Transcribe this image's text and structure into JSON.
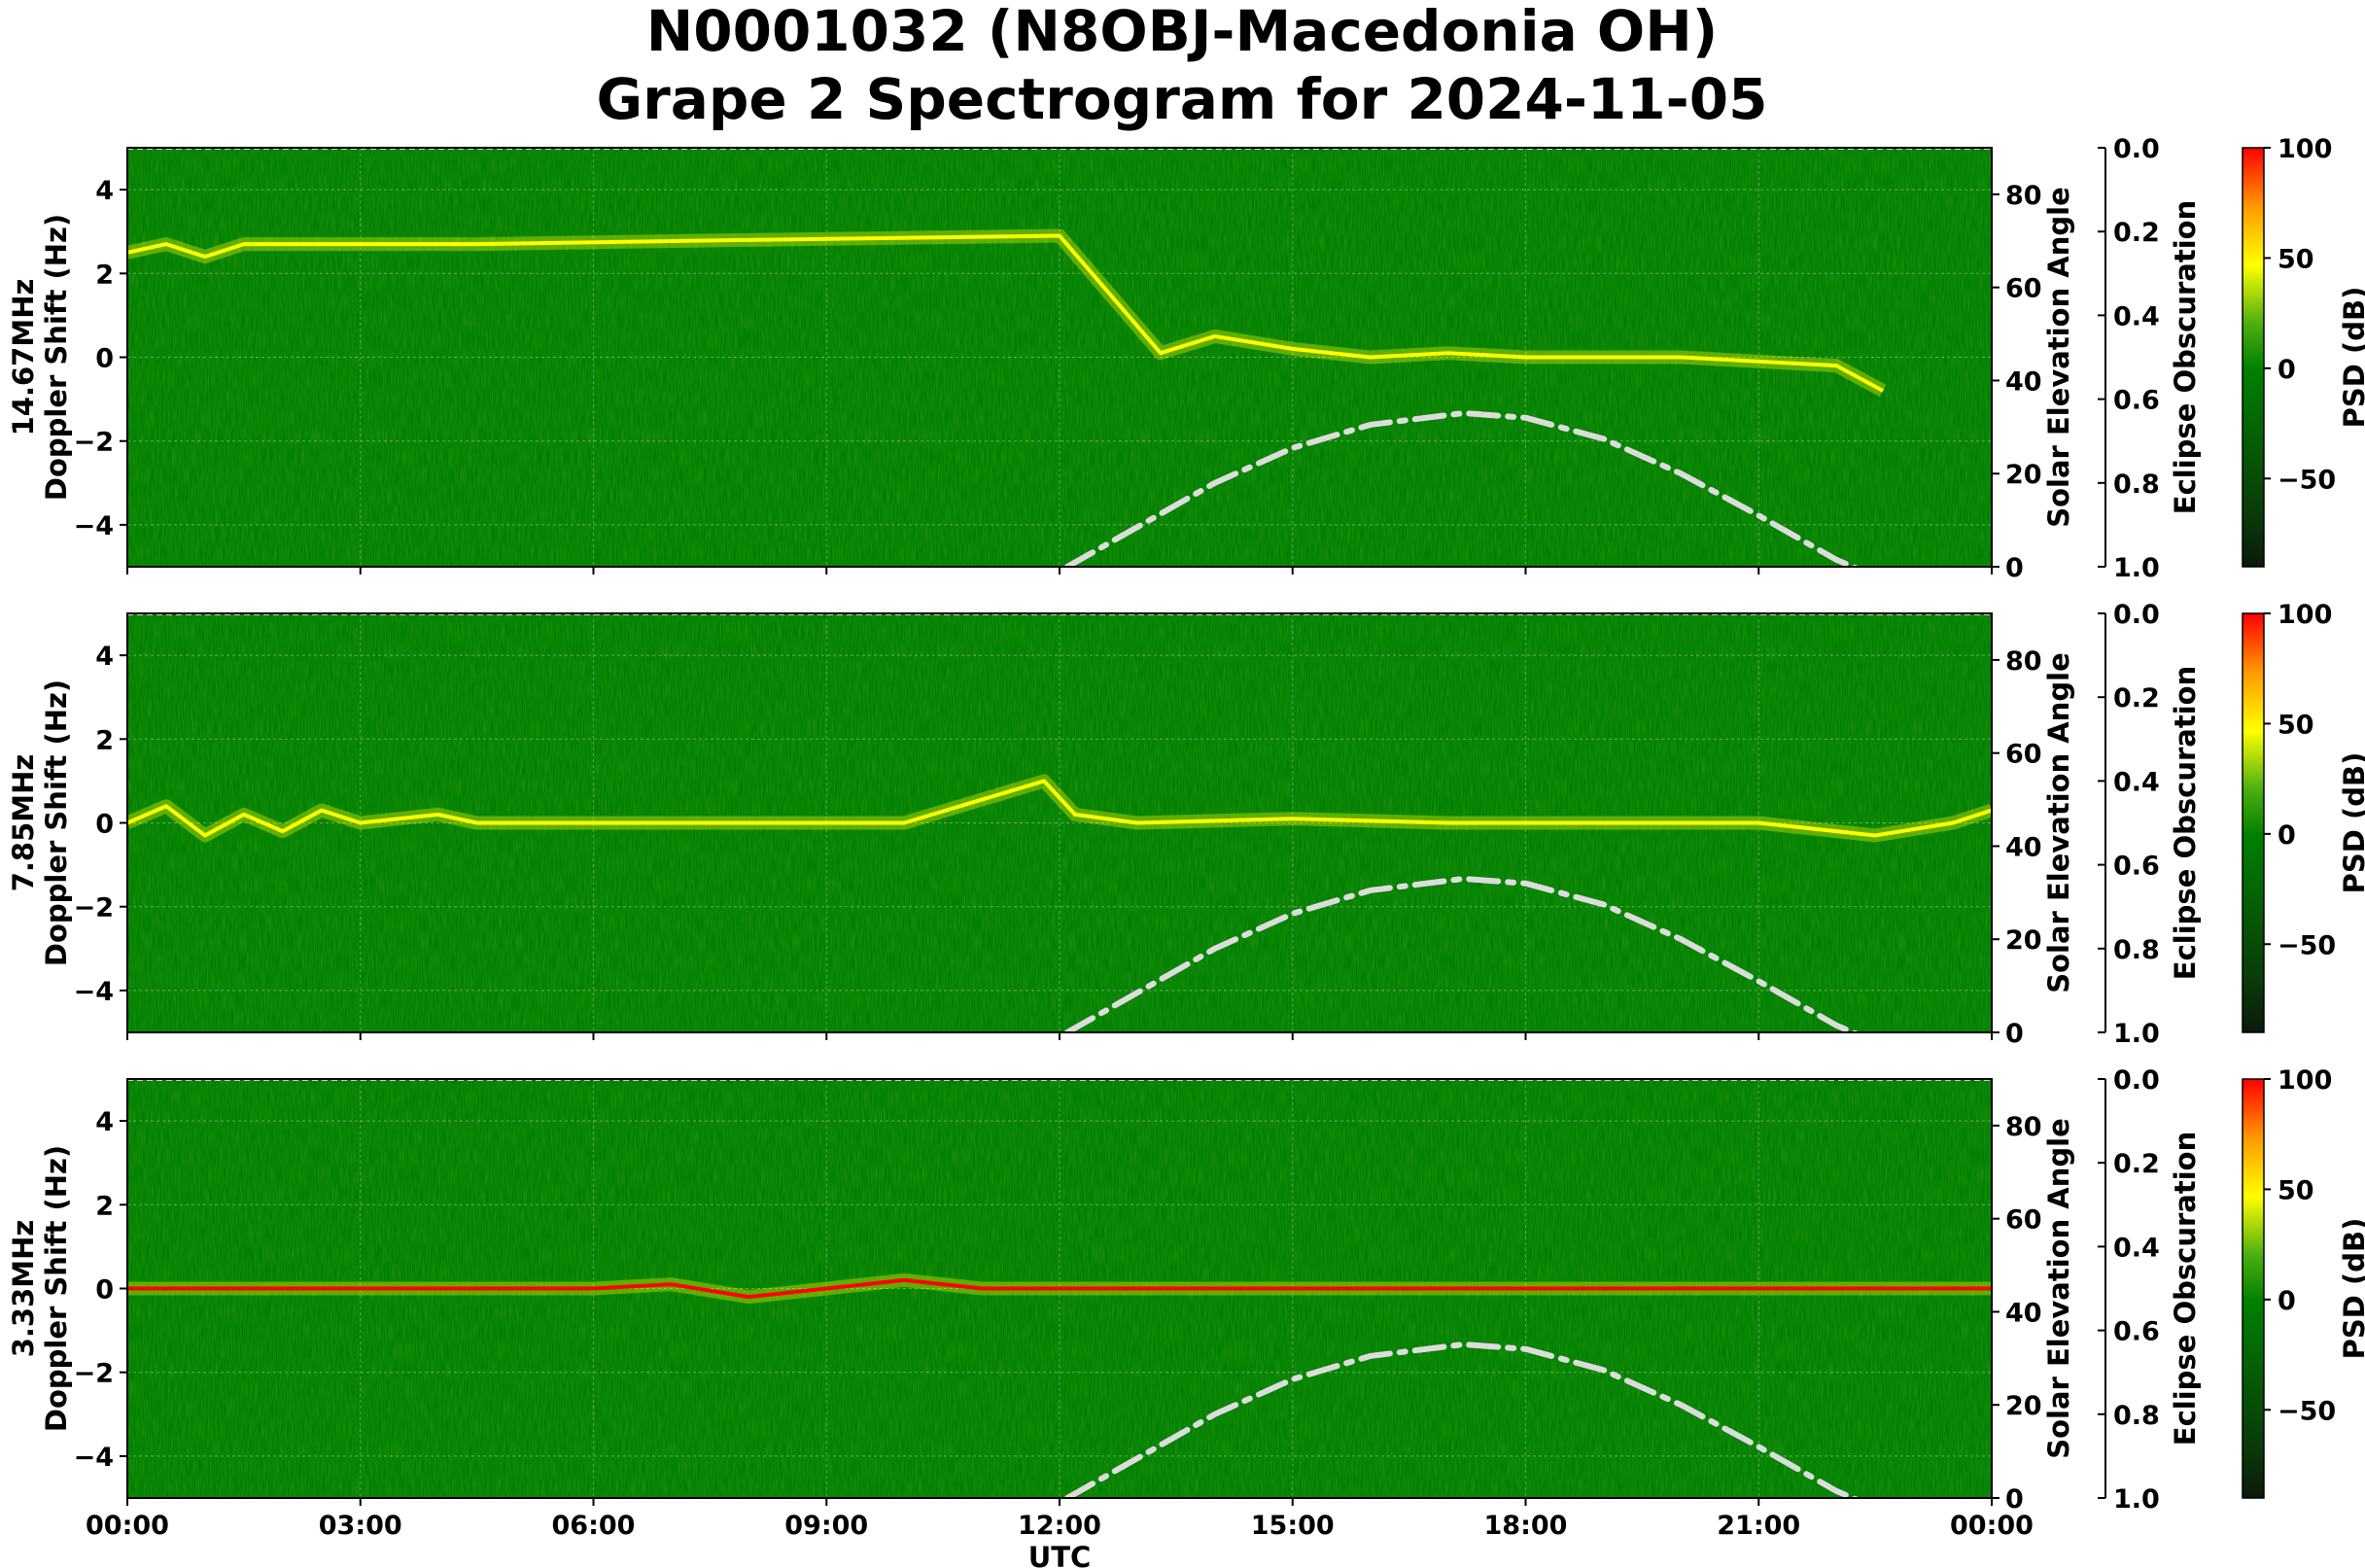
{
  "title_line1": "N0001032 (N8OBJ-Macedonia OH)",
  "title_line2": "Grape 2 Spectrogram for 2024-11-05",
  "colors": {
    "background": "#007f00",
    "low": "#0a2e0a",
    "mid": "#008000",
    "high_yellow": "#ffff00",
    "max": "#ff0000",
    "solar_curve": "#dcdcdc"
  },
  "chart_data": [
    {
      "type": "heatmap",
      "panel": "14.67MHz",
      "ylabel_line1": "14.67MHz",
      "ylabel_line2": "Doppler Shift (Hz)",
      "xlabel": "",
      "x_ticks": [
        "00:00",
        "03:00",
        "06:00",
        "09:00",
        "12:00",
        "15:00",
        "18:00",
        "21:00",
        "00:00"
      ],
      "xlim_hours": [
        0,
        24
      ],
      "ylim": [
        -5,
        5
      ],
      "y_ticks": [
        4,
        2,
        0,
        -2,
        -4
      ],
      "grid": true,
      "doppler_trace": {
        "hours": [
          0,
          0.5,
          1.0,
          1.5,
          2.0,
          4.5,
          8.0,
          12.0,
          13.3,
          14,
          15,
          16,
          17,
          18,
          19,
          20,
          21,
          22,
          22.6
        ],
        "hz": [
          2.5,
          2.7,
          2.4,
          2.7,
          2.7,
          2.7,
          2.8,
          2.9,
          0.1,
          0.5,
          0.2,
          0.0,
          0.1,
          0.0,
          0.0,
          0.0,
          -0.1,
          -0.2,
          -0.8
        ]
      },
      "right_axis_1": {
        "label": "Solar Elevation Angle",
        "ylim": [
          0,
          90
        ],
        "ticks": [
          0,
          20,
          40,
          60,
          80
        ]
      },
      "right_axis_2": {
        "label": "Eclipse Obscuration",
        "ylim": [
          1.0,
          0.0
        ],
        "ticks": [
          "0.0",
          "0.2",
          "0.4",
          "0.6",
          "0.8",
          "1.0"
        ]
      },
      "colorbar": {
        "label": "PSD (dB)",
        "range": [
          -90,
          100
        ],
        "ticks": [
          100,
          50,
          0,
          -50
        ]
      },
      "solar_elevation": {
        "hours": [
          12.1,
          13,
          14,
          15,
          16,
          17.2,
          18,
          19,
          20,
          21,
          22,
          22.5
        ],
        "degrees": [
          0,
          8.5,
          18,
          25.5,
          30.5,
          33,
          32,
          27.5,
          20,
          11,
          1.5,
          -2
        ]
      }
    },
    {
      "type": "heatmap",
      "panel": "7.85MHz",
      "ylabel_line1": "7.85MHz",
      "ylabel_line2": "Doppler Shift (Hz)",
      "xlabel": "",
      "x_ticks": [
        "00:00",
        "03:00",
        "06:00",
        "09:00",
        "12:00",
        "15:00",
        "18:00",
        "21:00",
        "00:00"
      ],
      "xlim_hours": [
        0,
        24
      ],
      "ylim": [
        -5,
        5
      ],
      "y_ticks": [
        4,
        2,
        0,
        -2,
        -4
      ],
      "grid": true,
      "doppler_trace": {
        "hours": [
          0,
          0.5,
          1.0,
          1.5,
          2.0,
          2.5,
          3.0,
          4.0,
          4.5,
          8.0,
          10.0,
          11.8,
          12.2,
          13.0,
          15,
          17,
          19,
          21,
          22.5,
          23.5,
          24
        ],
        "hz": [
          0.0,
          0.4,
          -0.3,
          0.2,
          -0.2,
          0.3,
          0.0,
          0.2,
          0.0,
          0.0,
          0.0,
          1.0,
          0.2,
          0.0,
          0.1,
          0.0,
          0.0,
          0.0,
          -0.3,
          0.0,
          0.3
        ]
      },
      "right_axis_1": {
        "label": "Solar Elevation Angle",
        "ylim": [
          0,
          90
        ],
        "ticks": [
          0,
          20,
          40,
          60,
          80
        ]
      },
      "right_axis_2": {
        "label": "Eclipse Obscuration",
        "ylim": [
          1.0,
          0.0
        ],
        "ticks": [
          "0.0",
          "0.2",
          "0.4",
          "0.6",
          "0.8",
          "1.0"
        ]
      },
      "colorbar": {
        "label": "PSD (dB)",
        "range": [
          -90,
          100
        ],
        "ticks": [
          100,
          50,
          0,
          -50
        ]
      },
      "solar_elevation": {
        "hours": [
          12.1,
          13,
          14,
          15,
          16,
          17.2,
          18,
          19,
          20,
          21,
          22,
          22.5
        ],
        "degrees": [
          0,
          8.5,
          18,
          25.5,
          30.5,
          33,
          32,
          27.5,
          20,
          11,
          1.5,
          -2
        ]
      }
    },
    {
      "type": "heatmap",
      "panel": "3.33MHz",
      "ylabel_line1": "3.33MHz",
      "ylabel_line2": "Doppler Shift (Hz)",
      "xlabel": "UTC",
      "x_ticks": [
        "00:00",
        "03:00",
        "06:00",
        "09:00",
        "12:00",
        "15:00",
        "18:00",
        "21:00",
        "00:00"
      ],
      "xlim_hours": [
        0,
        24
      ],
      "ylim": [
        -5,
        5
      ],
      "y_ticks": [
        4,
        2,
        0,
        -2,
        -4
      ],
      "grid": true,
      "doppler_trace": {
        "hours": [
          0,
          3,
          6,
          7,
          8,
          9,
          10,
          11,
          12,
          14,
          15.3,
          17,
          20,
          22,
          24
        ],
        "hz": [
          0.0,
          0.0,
          0.0,
          0.1,
          -0.2,
          0.0,
          0.2,
          0.0,
          0.0,
          0.0,
          0.0,
          0.0,
          0.0,
          0.0,
          0.0
        ]
      },
      "right_axis_1": {
        "label": "Solar Elevation Angle",
        "ylim": [
          0,
          90
        ],
        "ticks": [
          0,
          20,
          40,
          60,
          80
        ]
      },
      "right_axis_2": {
        "label": "Eclipse Obscuration",
        "ylim": [
          1.0,
          0.0
        ],
        "ticks": [
          "0.0",
          "0.2",
          "0.4",
          "0.6",
          "0.8",
          "1.0"
        ]
      },
      "colorbar": {
        "label": "PSD (dB)",
        "range": [
          -90,
          100
        ],
        "ticks": [
          100,
          50,
          0,
          -50
        ]
      },
      "solar_elevation": {
        "hours": [
          12.1,
          13,
          14,
          15,
          16,
          17.2,
          18,
          19,
          20,
          21,
          22,
          22.5
        ],
        "degrees": [
          0,
          8.5,
          18,
          25.5,
          30.5,
          33,
          32,
          27.5,
          20,
          11,
          1.5,
          -2
        ]
      }
    }
  ]
}
